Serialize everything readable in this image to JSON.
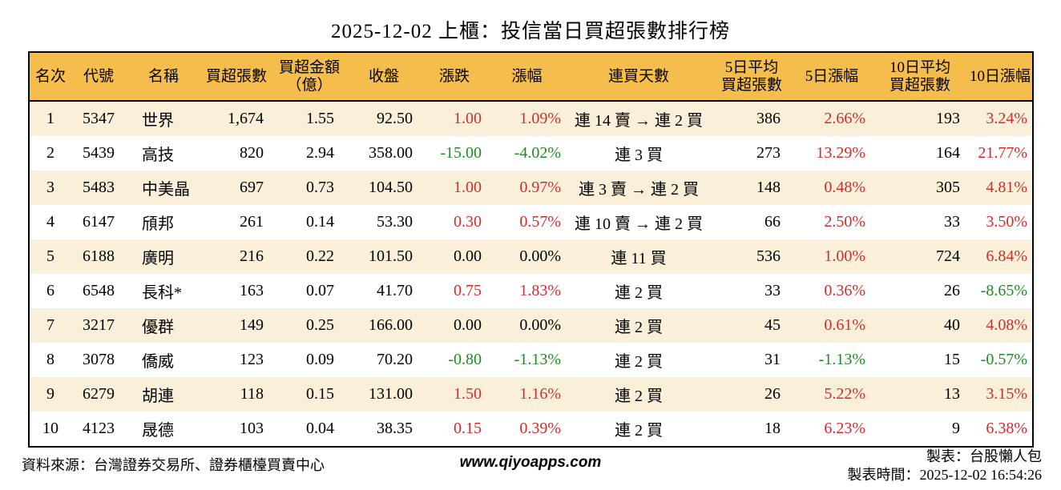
{
  "title": "2025-12-02 上櫃：投信當日買超張數排行榜",
  "colors": {
    "up_red": "#d42a2a",
    "down_green": "#1e8b1e",
    "header_bg": "#f5bd4b",
    "row_alt_bg": "#faf0da",
    "border": "#000000"
  },
  "table": {
    "headers": [
      "名次",
      "代號",
      "名稱",
      "買超張數",
      "買超金額\n（億）",
      "收盤",
      "漲跌",
      "漲幅",
      "連買天數",
      "5日平均\n買超張數",
      "5日漲幅",
      "10日平均\n買超張數",
      "10日漲幅"
    ],
    "rows": [
      {
        "rank": "1",
        "code": "5347",
        "name": "世界",
        "shares": "1,674",
        "amount": "1.55",
        "close": "92.50",
        "change": "1.00",
        "change_pct": "1.09%",
        "streak": "連 14 賣 → 連 2 買",
        "avg5": "386",
        "pct5": "2.66%",
        "avg10": "193",
        "pct10": "3.24%"
      },
      {
        "rank": "2",
        "code": "5439",
        "name": "高技",
        "shares": "820",
        "amount": "2.94",
        "close": "358.00",
        "change": "-15.00",
        "change_pct": "-4.02%",
        "streak": "連 3 買",
        "avg5": "273",
        "pct5": "13.29%",
        "avg10": "164",
        "pct10": "21.77%"
      },
      {
        "rank": "3",
        "code": "5483",
        "name": "中美晶",
        "shares": "697",
        "amount": "0.73",
        "close": "104.50",
        "change": "1.00",
        "change_pct": "0.97%",
        "streak": "連 3 賣 → 連 2 買",
        "avg5": "148",
        "pct5": "0.48%",
        "avg10": "305",
        "pct10": "4.81%"
      },
      {
        "rank": "4",
        "code": "6147",
        "name": "頎邦",
        "shares": "261",
        "amount": "0.14",
        "close": "53.30",
        "change": "0.30",
        "change_pct": "0.57%",
        "streak": "連 10 賣 → 連 2 買",
        "avg5": "66",
        "pct5": "2.50%",
        "avg10": "33",
        "pct10": "3.50%"
      },
      {
        "rank": "5",
        "code": "6188",
        "name": "廣明",
        "shares": "216",
        "amount": "0.22",
        "close": "101.50",
        "change": "0.00",
        "change_pct": "0.00%",
        "streak": "連 11 買",
        "avg5": "536",
        "pct5": "1.00%",
        "avg10": "724",
        "pct10": "6.84%"
      },
      {
        "rank": "6",
        "code": "6548",
        "name": "長科*",
        "shares": "163",
        "amount": "0.07",
        "close": "41.70",
        "change": "0.75",
        "change_pct": "1.83%",
        "streak": "連 2 買",
        "avg5": "33",
        "pct5": "0.36%",
        "avg10": "26",
        "pct10": "-8.65%"
      },
      {
        "rank": "7",
        "code": "3217",
        "name": "優群",
        "shares": "149",
        "amount": "0.25",
        "close": "166.00",
        "change": "0.00",
        "change_pct": "0.00%",
        "streak": "連 2 買",
        "avg5": "45",
        "pct5": "0.61%",
        "avg10": "40",
        "pct10": "4.08%"
      },
      {
        "rank": "8",
        "code": "3078",
        "name": "僑威",
        "shares": "123",
        "amount": "0.09",
        "close": "70.20",
        "change": "-0.80",
        "change_pct": "-1.13%",
        "streak": "連 2 買",
        "avg5": "31",
        "pct5": "-1.13%",
        "avg10": "15",
        "pct10": "-0.57%"
      },
      {
        "rank": "9",
        "code": "6279",
        "name": "胡連",
        "shares": "118",
        "amount": "0.15",
        "close": "131.00",
        "change": "1.50",
        "change_pct": "1.16%",
        "streak": "連 2 買",
        "avg5": "26",
        "pct5": "5.22%",
        "avg10": "13",
        "pct10": "3.15%"
      },
      {
        "rank": "10",
        "code": "4123",
        "name": "晟德",
        "shares": "103",
        "amount": "0.04",
        "close": "38.35",
        "change": "0.15",
        "change_pct": "0.39%",
        "streak": "連 2 買",
        "avg5": "18",
        "pct5": "6.23%",
        "avg10": "9",
        "pct10": "6.38%"
      }
    ]
  },
  "footer": {
    "source": "資料來源：台灣證券交易所、證券櫃檯買賣中心",
    "website": "www.qiyoapps.com",
    "made_by": "製表：台股懶人包",
    "made_time": "製表時間：2025-12-02 16:54:26"
  },
  "chart_data": {
    "type": "table",
    "title": "2025-12-02 上櫃：投信當日買超張數排行榜",
    "columns": [
      "名次",
      "代號",
      "名稱",
      "買超張數",
      "買超金額(億)",
      "收盤",
      "漲跌",
      "漲幅",
      "連買天數",
      "5日平均買超張數",
      "5日漲幅",
      "10日平均買超張數",
      "10日漲幅"
    ],
    "rows": [
      [
        1,
        "5347",
        "世界",
        1674,
        1.55,
        92.5,
        1.0,
        1.09,
        "連14賣→連2買",
        386,
        2.66,
        193,
        3.24
      ],
      [
        2,
        "5439",
        "高技",
        820,
        2.94,
        358.0,
        -15.0,
        -4.02,
        "連3買",
        273,
        13.29,
        164,
        21.77
      ],
      [
        3,
        "5483",
        "中美晶",
        697,
        0.73,
        104.5,
        1.0,
        0.97,
        "連3賣→連2買",
        148,
        0.48,
        305,
        4.81
      ],
      [
        4,
        "6147",
        "頎邦",
        261,
        0.14,
        53.3,
        0.3,
        0.57,
        "連10賣→連2買",
        66,
        2.5,
        33,
        3.5
      ],
      [
        5,
        "6188",
        "廣明",
        216,
        0.22,
        101.5,
        0.0,
        0.0,
        "連11買",
        536,
        1.0,
        724,
        6.84
      ],
      [
        6,
        "6548",
        "長科*",
        163,
        0.07,
        41.7,
        0.75,
        1.83,
        "連2買",
        33,
        0.36,
        26,
        -8.65
      ],
      [
        7,
        "3217",
        "優群",
        149,
        0.25,
        166.0,
        0.0,
        0.0,
        "連2買",
        45,
        0.61,
        40,
        4.08
      ],
      [
        8,
        "3078",
        "僑威",
        123,
        0.09,
        70.2,
        -0.8,
        -1.13,
        "連2買",
        31,
        -1.13,
        15,
        -0.57
      ],
      [
        9,
        "6279",
        "胡連",
        118,
        0.15,
        131.0,
        1.5,
        1.16,
        "連2買",
        26,
        5.22,
        13,
        3.15
      ],
      [
        10,
        "4123",
        "晟德",
        103,
        0.04,
        38.35,
        0.15,
        0.39,
        "連2買",
        18,
        6.23,
        9,
        6.38
      ]
    ],
    "notes": "漲跌/漲幅/5日漲幅/10日漲幅 positive values shown in red, negative in green, zero in black"
  }
}
